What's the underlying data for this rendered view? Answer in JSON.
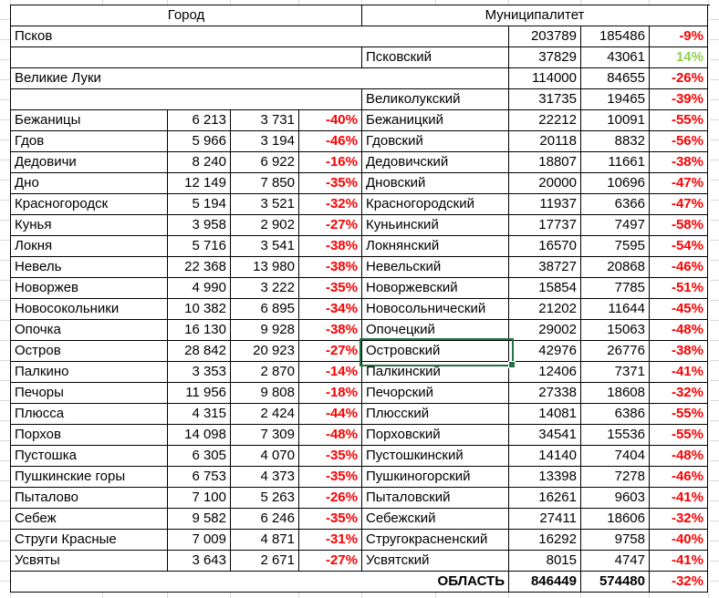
{
  "colors": {
    "negative_pct": "#FF0000",
    "positive_pct": "#92D050",
    "table_border": "#000000",
    "sheet_gridline": "#D9D9D9",
    "selection_border": "#217346"
  },
  "header": {
    "city": "Город",
    "municipality": "Муниципалитет"
  },
  "selection": {
    "cell_text": "Островский"
  },
  "rows": [
    {
      "type": "city_wide",
      "name": "Псков",
      "v1": "203789",
      "v2": "185486",
      "pct": "-9%"
    },
    {
      "type": "muni_only",
      "name": "Псковский",
      "v1": "37829",
      "v2": "43061",
      "pct": "14%"
    },
    {
      "type": "city_wide",
      "name": "Великие Луки",
      "v1": "114000",
      "v2": "84655",
      "pct": "-26%"
    },
    {
      "type": "muni_only",
      "name": "Великолукский",
      "v1": "31735",
      "v2": "19465",
      "pct": "-39%"
    },
    {
      "type": "pair",
      "city": {
        "name": "Бежаницы",
        "v1": "6 213",
        "v2": "3 731",
        "pct": "-40%"
      },
      "muni": {
        "name": "Бежаницкий",
        "v1": "22212",
        "v2": "10091",
        "pct": "-55%"
      }
    },
    {
      "type": "pair",
      "city": {
        "name": "Гдов",
        "v1": "5 966",
        "v2": "3 194",
        "pct": "-46%"
      },
      "muni": {
        "name": "Гдовский",
        "v1": "20118",
        "v2": "8832",
        "pct": "-56%"
      }
    },
    {
      "type": "pair",
      "city": {
        "name": "Дедовичи",
        "v1": "8 240",
        "v2": "6 922",
        "pct": "-16%"
      },
      "muni": {
        "name": "Дедовичский",
        "v1": "18807",
        "v2": "11661",
        "pct": "-38%"
      }
    },
    {
      "type": "pair",
      "city": {
        "name": "Дно",
        "v1": "12 149",
        "v2": "7 850",
        "pct": "-35%"
      },
      "muni": {
        "name": "Дновский",
        "v1": "20000",
        "v2": "10696",
        "pct": "-47%"
      }
    },
    {
      "type": "pair",
      "city": {
        "name": "Красногородск",
        "v1": "5 194",
        "v2": "3 521",
        "pct": "-32%"
      },
      "muni": {
        "name": "Красногородский",
        "v1": "11937",
        "v2": "6366",
        "pct": "-47%"
      }
    },
    {
      "type": "pair",
      "city": {
        "name": "Кунья",
        "v1": "3 958",
        "v2": "2 902",
        "pct": "-27%"
      },
      "muni": {
        "name": "Куньинский",
        "v1": "17737",
        "v2": "7497",
        "pct": "-58%"
      }
    },
    {
      "type": "pair",
      "city": {
        "name": "Локня",
        "v1": "5 716",
        "v2": "3 541",
        "pct": "-38%"
      },
      "muni": {
        "name": "Локнянский",
        "v1": "16570",
        "v2": "7595",
        "pct": "-54%"
      }
    },
    {
      "type": "pair",
      "city": {
        "name": "Невель",
        "v1": "22 368",
        "v2": "13 980",
        "pct": "-38%"
      },
      "muni": {
        "name": "Невельский",
        "v1": "38727",
        "v2": "20868",
        "pct": "-46%"
      }
    },
    {
      "type": "pair",
      "city": {
        "name": "Новоржев",
        "v1": "4 990",
        "v2": "3 222",
        "pct": "-35%"
      },
      "muni": {
        "name": "Новоржевский",
        "v1": "15854",
        "v2": "7785",
        "pct": "-51%"
      }
    },
    {
      "type": "pair",
      "city": {
        "name": "Новосокольники",
        "v1": "10 382",
        "v2": "6 895",
        "pct": "-34%"
      },
      "muni": {
        "name": "Новосольнический",
        "v1": "21202",
        "v2": "11644",
        "pct": "-45%"
      }
    },
    {
      "type": "pair",
      "city": {
        "name": "Опочка",
        "v1": "16 130",
        "v2": "9 928",
        "pct": "-38%"
      },
      "muni": {
        "name": "Опочецкий",
        "v1": "29002",
        "v2": "15063",
        "pct": "-48%"
      }
    },
    {
      "type": "pair",
      "city": {
        "name": "Остров",
        "v1": "28 842",
        "v2": "20 923",
        "pct": "-27%"
      },
      "muni": {
        "name": "Островский",
        "v1": "42976",
        "v2": "26776",
        "pct": "-38%"
      }
    },
    {
      "type": "pair",
      "city": {
        "name": "Палкино",
        "v1": "3 353",
        "v2": "2 870",
        "pct": "-14%"
      },
      "muni": {
        "name": "Палкинский",
        "v1": "12406",
        "v2": "7371",
        "pct": "-41%"
      }
    },
    {
      "type": "pair",
      "city": {
        "name": "Печоры",
        "v1": "11 956",
        "v2": "9 808",
        "pct": "-18%"
      },
      "muni": {
        "name": "Печорский",
        "v1": "27338",
        "v2": "18608",
        "pct": "-32%"
      }
    },
    {
      "type": "pair",
      "city": {
        "name": "Плюсса",
        "v1": "4 315",
        "v2": "2 424",
        "pct": "-44%"
      },
      "muni": {
        "name": "Плюсский",
        "v1": "14081",
        "v2": "6386",
        "pct": "-55%"
      }
    },
    {
      "type": "pair",
      "city": {
        "name": "Порхов",
        "v1": "14 098",
        "v2": "7 309",
        "pct": "-48%"
      },
      "muni": {
        "name": "Порховский",
        "v1": "34541",
        "v2": "15536",
        "pct": "-55%"
      }
    },
    {
      "type": "pair",
      "city": {
        "name": "Пустошка",
        "v1": "6 305",
        "v2": "4 070",
        "pct": "-35%"
      },
      "muni": {
        "name": "Пустошкинский",
        "v1": "14140",
        "v2": "7404",
        "pct": "-48%"
      }
    },
    {
      "type": "pair",
      "city": {
        "name": "Пушкинские горы",
        "v1": "6 753",
        "v2": "4 373",
        "pct": "-35%"
      },
      "muni": {
        "name": "Пушкиногорский",
        "v1": "13398",
        "v2": "7278",
        "pct": "-46%"
      }
    },
    {
      "type": "pair",
      "city": {
        "name": "Пыталово",
        "v1": "7 100",
        "v2": "5 263",
        "pct": "-26%"
      },
      "muni": {
        "name": "Пыталовский",
        "v1": "16261",
        "v2": "9603",
        "pct": "-41%"
      }
    },
    {
      "type": "pair",
      "city": {
        "name": "Себеж",
        "v1": "9 582",
        "v2": "6 246",
        "pct": "-35%"
      },
      "muni": {
        "name": "Себежский",
        "v1": "27411",
        "v2": "18606",
        "pct": "-32%"
      }
    },
    {
      "type": "pair",
      "city": {
        "name": "Струги Красные",
        "v1": "7 009",
        "v2": "4 871",
        "pct": "-31%"
      },
      "muni": {
        "name": "Стругокрасненский",
        "v1": "16292",
        "v2": "9758",
        "pct": "-40%"
      }
    },
    {
      "type": "pair",
      "city": {
        "name": "Усвяты",
        "v1": "3 643",
        "v2": "2 671",
        "pct": "-27%"
      },
      "muni": {
        "name": "Усвятский",
        "v1": "8015",
        "v2": "4747",
        "pct": "-41%"
      }
    },
    {
      "type": "total",
      "label": "ОБЛАСТЬ",
      "v1": "846449",
      "v2": "574480",
      "pct": "-32%"
    }
  ]
}
